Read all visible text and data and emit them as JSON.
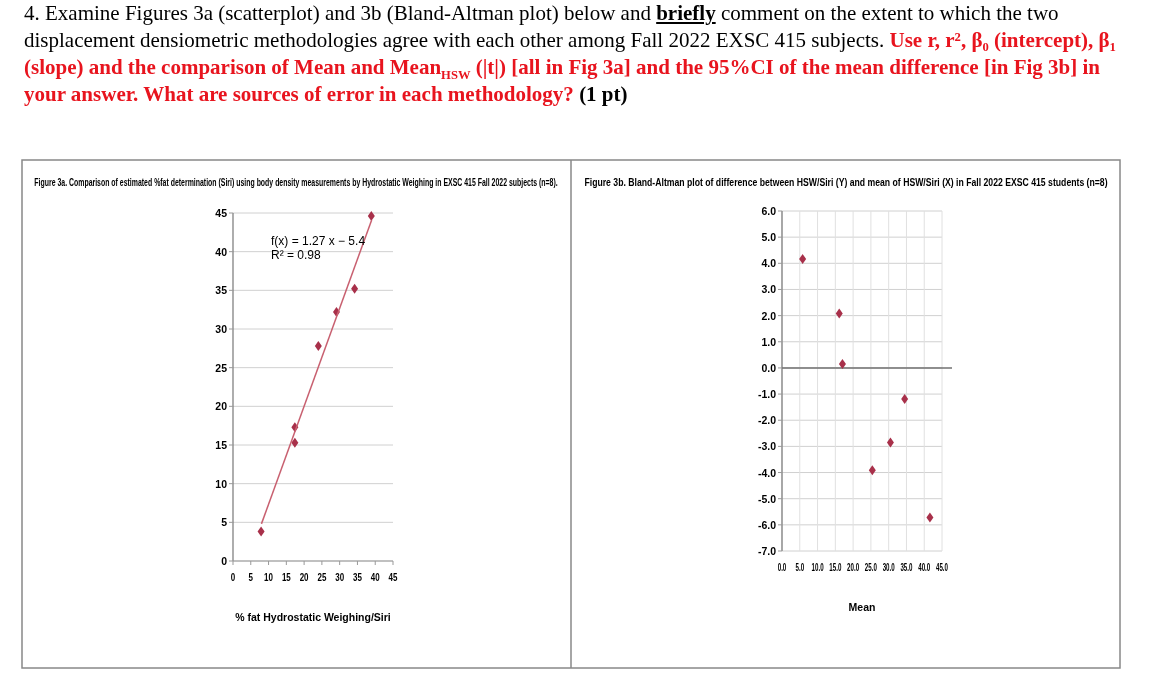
{
  "chart_data": [
    {
      "type": "other",
      "annotations": [
        "4. Examine Figures 3a (scatterplot) and 3b (Bland-Altman plot) below and ",
        "briefly",
        " comment on the extent to which the two displacement densiometric methodologies agree with each other among Fall 2022 EXSC 415 subjects. ",
        "Use r, r², β₀ (intercept), β₁ (slope) and the comparison of Mean and Mean$_{HSW}$ (|t|) [all in Fig 3a] and the 95%CI of the mean difference [in Fig 3b] in your answer.  What are sources of error in each methodology?",
        " (1 pt)"
      ]
    },
    {
      "type": "scatter",
      "title": "Figure 3a. Comparison of estimated %fat determination (Siri) using body density measurements by Hydrostatic Weighing in EXSC 415 Fall 2022 subjects (n=8).",
      "xlabel": "% fat Hydrostatic Weighing/Siri",
      "x": [
        7.9,
        17.4,
        17.4,
        24.0,
        29.1,
        34.2,
        38.9
      ],
      "xlim": [
        0,
        45
      ],
      "xticks": [
        0,
        5,
        10,
        15,
        20,
        25,
        30,
        35,
        40,
        45
      ],
      "ylim": [
        0,
        45
      ],
      "yticks": [
        0,
        5,
        10,
        15,
        20,
        25,
        30,
        35,
        40,
        45
      ],
      "grid": "y",
      "marker": "diamond",
      "series": [
        {
          "type": "scatter",
          "color": "#a8304a",
          "values": [
            3.8,
            15.3,
            17.3,
            27.8,
            32.2,
            35.2,
            44.6
          ]
        },
        {
          "type": "line",
          "color": "#c86070",
          "x": [
            8,
            39
          ],
          "values": [
            4.8,
            44.1
          ],
          "marker": "none"
        }
      ],
      "annotations": [
        "f(x) = 1.27 x − 5.4",
        "R² = 0.98"
      ]
    },
    {
      "type": "scatter",
      "title": "Figure 3b. Bland-Altman plot of difference between HSW/Siri (Y) and mean of HSW/Siri (X) in Fall 2022 EXSC 415 students (n=8)",
      "xlabel": "Mean",
      "x": [
        5.8,
        16.1,
        17.0,
        25.4,
        30.5,
        34.5,
        41.6
      ],
      "xlim": [
        0,
        45
      ],
      "xticks": [
        {
          "value": 0,
          "label": "0.0"
        },
        {
          "value": 5,
          "label": "5.0"
        },
        {
          "value": 10,
          "label": "10.0"
        },
        {
          "value": 15,
          "label": "15.0"
        },
        {
          "value": 20,
          "label": "20.0"
        },
        {
          "value": 25,
          "label": "25.0"
        },
        {
          "value": 30,
          "label": "30.0"
        },
        {
          "value": 35,
          "label": "35.0"
        },
        {
          "value": 40,
          "label": "40.0"
        },
        {
          "value": 45,
          "label": "45.0"
        }
      ],
      "ylim": [
        -7,
        6
      ],
      "yticks": [
        {
          "value": -7,
          "label": "-7.0"
        },
        {
          "value": -6,
          "label": "-6.0"
        },
        {
          "value": -5,
          "label": "-5.0"
        },
        {
          "value": -4,
          "label": "-4.0"
        },
        {
          "value": -3,
          "label": "-3.0"
        },
        {
          "value": -2,
          "label": "-2.0"
        },
        {
          "value": -1,
          "label": "-1.0"
        },
        {
          "value": 0,
          "label": "0.0"
        },
        {
          "value": 1,
          "label": "1.0"
        },
        {
          "value": 2,
          "label": "2.0"
        },
        {
          "value": 3,
          "label": "3.0"
        },
        {
          "value": 4,
          "label": "4.0"
        },
        {
          "value": 5,
          "label": "5.0"
        },
        {
          "value": 6,
          "label": "6.0"
        }
      ],
      "grid": true,
      "marker": "diamond",
      "ref_lines": [
        {
          "axis": "y",
          "value": 0,
          "color": "#707070"
        }
      ],
      "series": [
        {
          "type": "scatter",
          "color": "#a8304a",
          "values": [
            4.16,
            2.08,
            0.15,
            -3.91,
            -2.85,
            -1.19,
            -5.72
          ]
        }
      ]
    }
  ]
}
